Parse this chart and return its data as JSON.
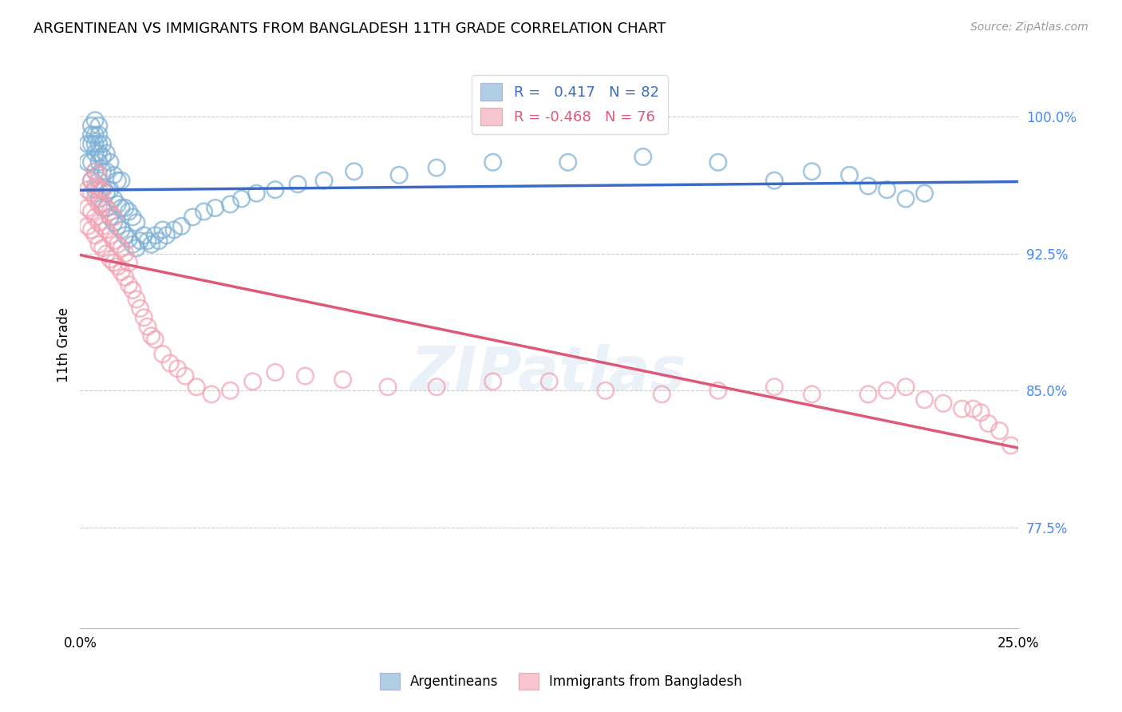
{
  "title": "ARGENTINEAN VS IMMIGRANTS FROM BANGLADESH 11TH GRADE CORRELATION CHART",
  "source": "Source: ZipAtlas.com",
  "ylabel": "11th Grade",
  "ytick_labels": [
    "77.5%",
    "85.0%",
    "92.5%",
    "100.0%"
  ],
  "ytick_values": [
    0.775,
    0.85,
    0.925,
    1.0
  ],
  "xlim": [
    0.0,
    0.25
  ],
  "ylim": [
    0.72,
    1.03
  ],
  "legend_blue_label": "Argentineans",
  "legend_pink_label": "Immigrants from Bangladesh",
  "R_blue": 0.417,
  "N_blue": 82,
  "R_pink": -0.468,
  "N_pink": 76,
  "blue_color": "#7BAFD4",
  "pink_color": "#F4A0B0",
  "line_blue_color": "#3A6BC8",
  "line_pink_color": "#E05878",
  "watermark": "ZIPatlas",
  "blue_scatter_x": [
    0.002,
    0.002,
    0.003,
    0.003,
    0.003,
    0.003,
    0.003,
    0.004,
    0.004,
    0.004,
    0.004,
    0.004,
    0.004,
    0.005,
    0.005,
    0.005,
    0.005,
    0.005,
    0.005,
    0.005,
    0.006,
    0.006,
    0.006,
    0.006,
    0.006,
    0.007,
    0.007,
    0.007,
    0.007,
    0.008,
    0.008,
    0.008,
    0.009,
    0.009,
    0.009,
    0.01,
    0.01,
    0.01,
    0.011,
    0.011,
    0.011,
    0.012,
    0.012,
    0.013,
    0.013,
    0.014,
    0.014,
    0.015,
    0.015,
    0.016,
    0.017,
    0.018,
    0.019,
    0.02,
    0.021,
    0.022,
    0.023,
    0.025,
    0.027,
    0.03,
    0.033,
    0.036,
    0.04,
    0.043,
    0.047,
    0.052,
    0.058,
    0.065,
    0.073,
    0.085,
    0.095,
    0.11,
    0.13,
    0.15,
    0.17,
    0.185,
    0.195,
    0.205,
    0.21,
    0.215,
    0.22,
    0.225
  ],
  "blue_scatter_y": [
    0.975,
    0.985,
    0.965,
    0.975,
    0.985,
    0.99,
    0.995,
    0.96,
    0.97,
    0.98,
    0.985,
    0.99,
    0.998,
    0.955,
    0.965,
    0.975,
    0.98,
    0.985,
    0.99,
    0.995,
    0.95,
    0.96,
    0.97,
    0.978,
    0.985,
    0.95,
    0.958,
    0.97,
    0.98,
    0.945,
    0.96,
    0.975,
    0.942,
    0.955,
    0.968,
    0.94,
    0.952,
    0.965,
    0.938,
    0.95,
    0.965,
    0.935,
    0.95,
    0.933,
    0.948,
    0.93,
    0.945,
    0.928,
    0.942,
    0.932,
    0.935,
    0.932,
    0.93,
    0.935,
    0.932,
    0.938,
    0.935,
    0.938,
    0.94,
    0.945,
    0.948,
    0.95,
    0.952,
    0.955,
    0.958,
    0.96,
    0.963,
    0.965,
    0.97,
    0.968,
    0.972,
    0.975,
    0.975,
    0.978,
    0.975,
    0.965,
    0.97,
    0.968,
    0.962,
    0.96,
    0.955,
    0.958
  ],
  "pink_scatter_x": [
    0.002,
    0.002,
    0.002,
    0.003,
    0.003,
    0.003,
    0.003,
    0.004,
    0.004,
    0.004,
    0.004,
    0.004,
    0.005,
    0.005,
    0.005,
    0.005,
    0.005,
    0.006,
    0.006,
    0.006,
    0.006,
    0.007,
    0.007,
    0.007,
    0.008,
    0.008,
    0.008,
    0.009,
    0.009,
    0.009,
    0.01,
    0.01,
    0.011,
    0.011,
    0.012,
    0.012,
    0.013,
    0.013,
    0.014,
    0.015,
    0.016,
    0.017,
    0.018,
    0.019,
    0.02,
    0.022,
    0.024,
    0.026,
    0.028,
    0.031,
    0.035,
    0.04,
    0.046,
    0.052,
    0.06,
    0.07,
    0.082,
    0.095,
    0.11,
    0.125,
    0.14,
    0.155,
    0.17,
    0.185,
    0.195,
    0.21,
    0.215,
    0.22,
    0.225,
    0.23,
    0.235,
    0.238,
    0.24,
    0.242,
    0.245,
    0.248
  ],
  "pink_scatter_y": [
    0.94,
    0.95,
    0.96,
    0.938,
    0.948,
    0.958,
    0.965,
    0.935,
    0.945,
    0.955,
    0.962,
    0.97,
    0.93,
    0.942,
    0.952,
    0.96,
    0.968,
    0.928,
    0.94,
    0.952,
    0.96,
    0.925,
    0.938,
    0.95,
    0.922,
    0.935,
    0.948,
    0.92,
    0.932,
    0.945,
    0.918,
    0.93,
    0.915,
    0.928,
    0.912,
    0.925,
    0.908,
    0.92,
    0.905,
    0.9,
    0.895,
    0.89,
    0.885,
    0.88,
    0.878,
    0.87,
    0.865,
    0.862,
    0.858,
    0.852,
    0.848,
    0.85,
    0.855,
    0.86,
    0.858,
    0.856,
    0.852,
    0.852,
    0.855,
    0.855,
    0.85,
    0.848,
    0.85,
    0.852,
    0.848,
    0.848,
    0.85,
    0.852,
    0.845,
    0.843,
    0.84,
    0.84,
    0.838,
    0.832,
    0.828,
    0.82
  ]
}
